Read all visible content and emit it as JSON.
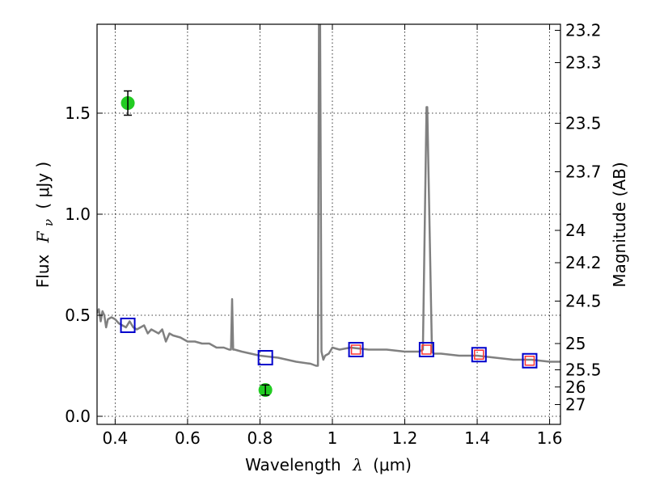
{
  "chart_data": {
    "type": "line",
    "xlabel": {
      "prefix": "Wavelength",
      "symbol": "λ",
      "unit": "(μm)"
    },
    "ylabel": {
      "prefix": "Flux",
      "symbol": "F",
      "subscript": "ν",
      "unit": "( μJy )"
    },
    "y2label": "Magnitude (AB)",
    "xlim": [
      0.35,
      1.63
    ],
    "ylim": [
      -0.04,
      1.94
    ],
    "grid": true,
    "x_ticks": [
      0.4,
      0.6,
      0.8,
      1.0,
      1.2,
      1.4,
      1.6
    ],
    "x_tick_labels": [
      "0.4",
      "0.6",
      "0.8",
      "1",
      "1.2",
      "1.4",
      "1.6"
    ],
    "y_ticks": [
      0.0,
      0.5,
      1.0,
      1.5
    ],
    "y_tick_labels": [
      "0.0",
      "0.5",
      "1.0",
      "1.5"
    ],
    "y2_ticks": [
      {
        "flux": 1.91,
        "label": "23.2"
      },
      {
        "flux": 1.75,
        "label": "23.3"
      },
      {
        "flux": 1.45,
        "label": "23.5"
      },
      {
        "flux": 1.21,
        "label": "23.7"
      },
      {
        "flux": 0.92,
        "label": "24"
      },
      {
        "flux": 0.76,
        "label": "24.2"
      },
      {
        "flux": 0.57,
        "label": "24.5"
      },
      {
        "flux": 0.36,
        "label": "25"
      },
      {
        "flux": 0.23,
        "label": "25.5"
      },
      {
        "flux": 0.145,
        "label": "26"
      },
      {
        "flux": 0.058,
        "label": "27"
      }
    ],
    "series": [
      {
        "kind": "model-spectrum",
        "color": "#808080",
        "x": [
          0.35,
          0.355,
          0.36,
          0.365,
          0.37,
          0.375,
          0.38,
          0.39,
          0.4,
          0.41,
          0.42,
          0.43,
          0.44,
          0.45,
          0.46,
          0.47,
          0.48,
          0.49,
          0.5,
          0.51,
          0.52,
          0.53,
          0.54,
          0.55,
          0.56,
          0.58,
          0.6,
          0.62,
          0.64,
          0.66,
          0.68,
          0.7,
          0.715,
          0.72,
          0.723,
          0.726,
          0.73,
          0.75,
          0.8,
          0.85,
          0.9,
          0.94,
          0.955,
          0.96,
          0.963,
          0.966,
          0.97,
          0.975,
          0.98,
          0.99,
          1.0,
          1.02,
          1.05,
          1.1,
          1.15,
          1.2,
          1.24,
          1.25,
          1.26,
          1.262,
          1.275,
          1.28,
          1.3,
          1.35,
          1.4,
          1.45,
          1.5,
          1.55,
          1.6,
          1.63
        ],
        "y": [
          0.51,
          0.53,
          0.47,
          0.52,
          0.5,
          0.44,
          0.48,
          0.49,
          0.48,
          0.46,
          0.45,
          0.44,
          0.47,
          0.44,
          0.43,
          0.44,
          0.45,
          0.41,
          0.43,
          0.42,
          0.41,
          0.43,
          0.37,
          0.41,
          0.4,
          0.39,
          0.37,
          0.37,
          0.36,
          0.36,
          0.34,
          0.34,
          0.33,
          0.33,
          0.58,
          0.33,
          0.33,
          0.32,
          0.3,
          0.29,
          0.27,
          0.26,
          0.25,
          0.25,
          1.94,
          1.94,
          0.32,
          0.28,
          0.3,
          0.31,
          0.34,
          0.33,
          0.34,
          0.33,
          0.33,
          0.32,
          0.32,
          0.33,
          1.53,
          1.53,
          0.32,
          0.31,
          0.31,
          0.3,
          0.3,
          0.29,
          0.28,
          0.28,
          0.27,
          0.27
        ]
      },
      {
        "kind": "model-photometry",
        "marker": "open-square",
        "color": "#0000cc",
        "x": [
          0.435,
          0.815,
          1.065,
          1.26,
          1.405,
          1.545
        ],
        "y": [
          0.45,
          0.29,
          0.33,
          0.33,
          0.305,
          0.275
        ]
      },
      {
        "kind": "observed-photometry-inner",
        "marker": "open-square",
        "color": "#ff3333",
        "x": [
          1.065,
          1.26,
          1.405,
          1.545
        ],
        "y": [
          0.33,
          0.33,
          0.305,
          0.275
        ]
      },
      {
        "kind": "observed-detections",
        "marker": "filled-circle",
        "color": "#22cc22",
        "x": [
          0.435,
          0.815
        ],
        "y": [
          1.55,
          0.13
        ],
        "yerr": [
          0.06,
          0.025
        ]
      }
    ]
  }
}
